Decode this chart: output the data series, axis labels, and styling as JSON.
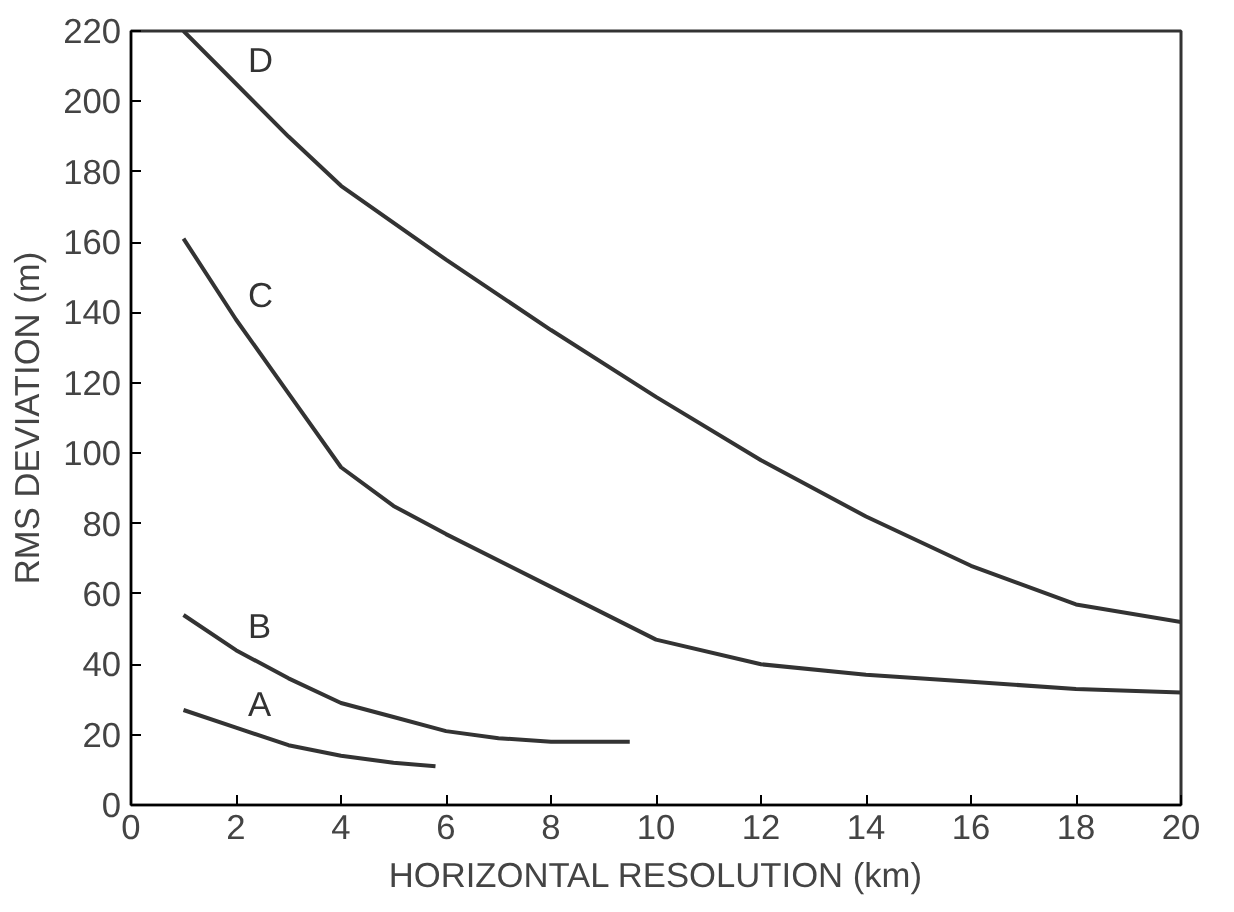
{
  "chart_data": {
    "type": "line",
    "xlabel": "HORIZONTAL RESOLUTION (km)",
    "ylabel": "RMS DEVIATION (m)",
    "xlim": [
      0,
      20
    ],
    "ylim": [
      0,
      220
    ],
    "xticks": [
      0,
      2,
      4,
      6,
      8,
      10,
      12,
      14,
      16,
      18,
      20
    ],
    "yticks": [
      0,
      20,
      40,
      60,
      80,
      100,
      120,
      140,
      160,
      180,
      200,
      220
    ],
    "grid": false,
    "series": [
      {
        "name": "A",
        "color": "#333333",
        "x": [
          1,
          2,
          3,
          4,
          5,
          5.8
        ],
        "values": [
          27,
          22,
          17,
          14,
          12,
          11
        ]
      },
      {
        "name": "B",
        "color": "#333333",
        "x": [
          1,
          2,
          3,
          4,
          5,
          6,
          7,
          8,
          9.5
        ],
        "values": [
          54,
          44,
          36,
          29,
          25,
          21,
          19,
          18,
          18
        ]
      },
      {
        "name": "C",
        "color": "#333333",
        "x": [
          1,
          2,
          3,
          4,
          5,
          6,
          8,
          10,
          12,
          14,
          16,
          18,
          20
        ],
        "values": [
          161,
          138,
          117,
          96,
          85,
          77,
          62,
          47,
          40,
          37,
          35,
          33,
          32
        ]
      },
      {
        "name": "D",
        "color": "#333333",
        "x": [
          1,
          2,
          3,
          4,
          6,
          8,
          10,
          12,
          14,
          16,
          18,
          20
        ],
        "values": [
          220,
          205,
          190,
          176,
          155,
          135,
          116,
          98,
          82,
          68,
          57,
          52
        ]
      }
    ]
  }
}
